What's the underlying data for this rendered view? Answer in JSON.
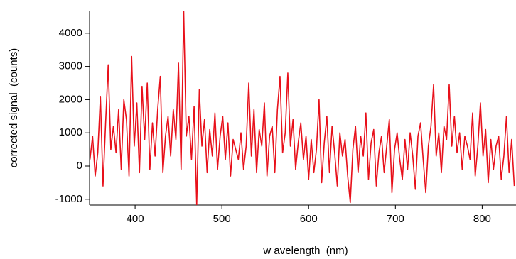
{
  "chart_data": {
    "type": "line",
    "x_label": "w avelength  (nm)",
    "y_label": "corrected signal  (counts)",
    "xlim": [
      347.5,
      839
    ],
    "ylim": [
      -1175,
      4680
    ],
    "xticks": [
      400,
      500,
      600,
      700,
      800
    ],
    "yticks": [
      -1000,
      0,
      1000,
      2000,
      3000,
      4000
    ],
    "x": [
      348,
      351,
      354,
      357,
      360,
      363,
      366,
      369,
      372,
      375,
      378,
      381,
      384,
      387,
      390,
      393,
      396,
      399,
      402,
      405,
      408,
      411,
      414,
      417,
      420,
      423,
      426,
      429,
      432,
      435,
      438,
      441,
      444,
      447,
      450,
      453,
      456,
      459,
      462,
      465,
      468,
      471,
      474,
      477,
      480,
      483,
      486,
      489,
      492,
      495,
      498,
      501,
      504,
      507,
      510,
      513,
      516,
      519,
      522,
      525,
      528,
      531,
      534,
      537,
      540,
      543,
      546,
      549,
      552,
      555,
      558,
      561,
      564,
      567,
      570,
      573,
      576,
      579,
      582,
      585,
      588,
      591,
      594,
      597,
      600,
      603,
      606,
      609,
      612,
      615,
      618,
      621,
      624,
      627,
      630,
      633,
      636,
      639,
      642,
      645,
      648,
      651,
      654,
      657,
      660,
      663,
      666,
      669,
      672,
      675,
      678,
      681,
      684,
      687,
      690,
      693,
      696,
      699,
      702,
      705,
      708,
      711,
      714,
      717,
      720,
      723,
      726,
      729,
      732,
      735,
      738,
      741,
      744,
      747,
      750,
      753,
      756,
      759,
      762,
      765,
      768,
      771,
      774,
      777,
      780,
      783,
      786,
      789,
      792,
      795,
      798,
      801,
      804,
      807,
      810,
      813,
      816,
      819,
      822,
      825,
      828,
      831,
      834,
      837
    ],
    "series": [
      {
        "color": "#e8101a",
        "values": [
          200,
          900,
          -300,
          400,
          2100,
          -600,
          1300,
          3050,
          500,
          1200,
          400,
          1700,
          -100,
          2000,
          1400,
          -300,
          3300,
          600,
          1900,
          -200,
          2400,
          800,
          2500,
          -100,
          1300,
          300,
          1700,
          2700,
          -200,
          900,
          1500,
          300,
          1700,
          800,
          3100,
          -100,
          4680,
          900,
          1500,
          200,
          1800,
          -1175,
          2300,
          600,
          1400,
          -200,
          1100,
          300,
          1600,
          -100,
          900,
          1500,
          200,
          1300,
          -300,
          800,
          500,
          200,
          1000,
          -100,
          600,
          2500,
          300,
          1700,
          -200,
          1100,
          600,
          1900,
          -300,
          900,
          1200,
          -200,
          1700,
          2700,
          400,
          1000,
          2800,
          600,
          1400,
          -100,
          700,
          1300,
          200,
          900,
          -400,
          800,
          -200,
          500,
          2000,
          -500,
          700,
          1500,
          -200,
          1200,
          400,
          -600,
          1000,
          300,
          800,
          -300,
          -1100,
          500,
          1200,
          -200,
          900,
          300,
          1600,
          -400,
          700,
          1100,
          -600,
          400,
          900,
          -200,
          600,
          1400,
          -800,
          500,
          1000,
          200,
          -400,
          800,
          -100,
          1000,
          300,
          -700,
          900,
          1300,
          200,
          -800,
          600,
          1200,
          2450,
          300,
          1000,
          -200,
          1200,
          800,
          2450,
          600,
          1500,
          400,
          1000,
          -100,
          900,
          600,
          200,
          1600,
          -300,
          600,
          1900,
          300,
          1100,
          -500,
          800,
          -100,
          600,
          900,
          -400,
          300,
          1500,
          -200,
          800,
          -600
        ]
      }
    ]
  }
}
